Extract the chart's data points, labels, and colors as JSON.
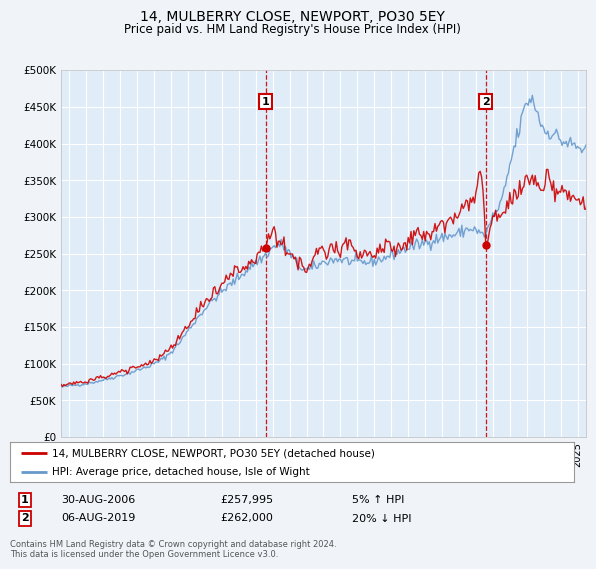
{
  "title": "14, MULBERRY CLOSE, NEWPORT, PO30 5EY",
  "subtitle": "Price paid vs. HM Land Registry's House Price Index (HPI)",
  "footer": "Contains HM Land Registry data © Crown copyright and database right 2024.\nThis data is licensed under the Open Government Licence v3.0.",
  "legend_line1": "14, MULBERRY CLOSE, NEWPORT, PO30 5EY (detached house)",
  "legend_line2": "HPI: Average price, detached house, Isle of Wight",
  "annotation1_label": "1",
  "annotation1_date": "30-AUG-2006",
  "annotation1_price": "£257,995",
  "annotation1_hpi": "5% ↑ HPI",
  "annotation2_label": "2",
  "annotation2_date": "06-AUG-2019",
  "annotation2_price": "£262,000",
  "annotation2_hpi": "20% ↓ HPI",
  "sale1_year": 2006.58,
  "sale1_value": 257995,
  "sale2_year": 2019.58,
  "sale2_value": 262000,
  "bg_color": "#f0f4f8",
  "plot_bg_color": "#e0ecf8",
  "red_color": "#cc0000",
  "blue_color": "#6699cc",
  "grid_color": "#ffffff",
  "ylim": [
    0,
    500000
  ],
  "yticks": [
    0,
    50000,
    100000,
    150000,
    200000,
    250000,
    300000,
    350000,
    400000,
    450000,
    500000
  ],
  "xlim_start": 1994.5,
  "xlim_end": 2025.5
}
